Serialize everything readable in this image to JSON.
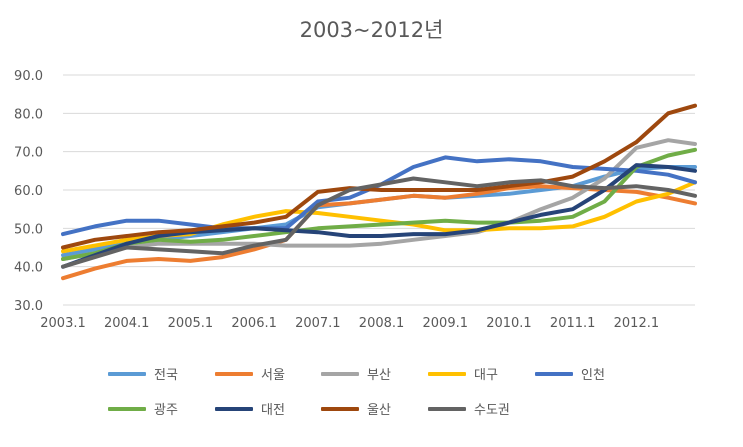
{
  "chart_data": {
    "type": "line",
    "title": "2003~2012년",
    "xlabel": "",
    "ylabel": "",
    "ylim": [
      30,
      90
    ],
    "y_ticks": [
      "30.0",
      "40.0",
      "50.0",
      "60.0",
      "70.0",
      "80.0",
      "90.0"
    ],
    "x_ticks": [
      "2003.1",
      "2004.1",
      "2005.1",
      "2006.1",
      "2007.1",
      "2008.1",
      "2009.1",
      "2010.1",
      "2011.1",
      "2012.1"
    ],
    "x_range_years": [
      2003.0,
      2012.92
    ],
    "grid": true,
    "legend_position": "bottom",
    "x": [
      2003.0,
      2003.5,
      2004.0,
      2004.5,
      2005.0,
      2005.5,
      2006.0,
      2006.5,
      2007.0,
      2007.5,
      2008.0,
      2008.5,
      2009.0,
      2009.5,
      2010.0,
      2010.5,
      2011.0,
      2011.5,
      2012.0,
      2012.5,
      2012.92
    ],
    "series": [
      {
        "name": "전국",
        "color": "#5B9BD5",
        "values": [
          43,
          44.5,
          46,
          47,
          48,
          49,
          50,
          51,
          55.5,
          56.5,
          57.5,
          58.5,
          58,
          58.5,
          59,
          60,
          61,
          63.5,
          65.5,
          66,
          66
        ]
      },
      {
        "name": "서울",
        "color": "#ED7D31",
        "values": [
          37,
          39.5,
          41.5,
          42,
          41.5,
          42.5,
          44.5,
          47,
          56,
          56.5,
          57.5,
          58.5,
          58,
          59,
          60.5,
          61,
          60.5,
          60,
          59.5,
          58,
          56.5
        ]
      },
      {
        "name": "부산",
        "color": "#A5A5A5",
        "values": [
          42,
          43.5,
          45,
          46,
          46,
          46,
          46,
          45.5,
          45.5,
          45.5,
          46,
          47,
          48,
          49,
          51.5,
          55,
          58,
          63,
          71,
          73,
          72
        ]
      },
      {
        "name": "대구",
        "color": "#FFC000",
        "values": [
          44,
          45.5,
          47,
          48,
          48.5,
          51,
          53,
          54.5,
          54,
          53,
          52,
          51,
          49.5,
          49.5,
          50,
          50,
          50.5,
          53,
          57,
          59,
          62
        ]
      },
      {
        "name": "인천",
        "color": "#4472C4",
        "values": [
          48.5,
          50.5,
          52,
          52,
          51,
          50,
          50,
          50,
          57,
          58,
          61.5,
          66,
          68.5,
          67.5,
          68,
          67.5,
          66,
          65.5,
          65,
          64,
          62
        ]
      },
      {
        "name": "광주",
        "color": "#70AD47",
        "values": [
          42,
          43.5,
          46,
          47,
          46.5,
          47,
          48,
          49,
          50,
          50.5,
          51,
          51.5,
          52,
          51.5,
          51.5,
          52,
          53,
          57,
          66,
          69,
          70.5
        ]
      },
      {
        "name": "대전",
        "color": "#264478",
        "values": [
          40,
          43,
          46,
          48,
          49,
          49.5,
          50,
          49.5,
          49,
          48,
          48,
          48.5,
          48.5,
          49.5,
          51.5,
          53.5,
          55,
          60,
          66.5,
          66,
          65
        ]
      },
      {
        "name": "울산",
        "color": "#9E480E",
        "values": [
          45,
          47,
          48,
          49,
          49.5,
          50.5,
          51.5,
          53,
          59.5,
          60.5,
          60,
          60,
          60,
          60,
          61,
          62,
          63.5,
          67.5,
          72.5,
          80,
          82
        ]
      },
      {
        "name": "수도권",
        "color": "#636363",
        "values": [
          40,
          42.5,
          45,
          44.5,
          44,
          43.5,
          45.5,
          47,
          56,
          60,
          61.5,
          63,
          62,
          61,
          62,
          62.5,
          61,
          60.5,
          61,
          60,
          58.5
        ]
      }
    ]
  }
}
